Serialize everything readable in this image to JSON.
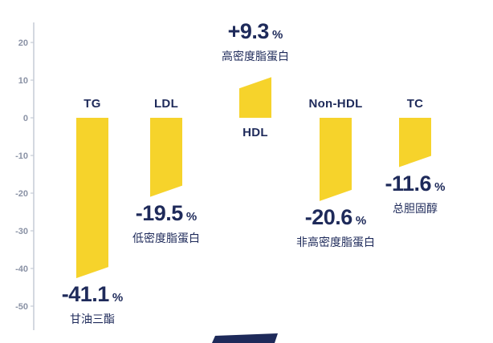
{
  "chart_data": {
    "type": "bar",
    "categories": [
      "TG",
      "LDL",
      "HDL",
      "Non-HDL",
      "TC"
    ],
    "values": [
      -41.1,
      -19.5,
      9.3,
      -20.6,
      -11.6
    ],
    "value_labels": [
      "-41.1",
      "-19.5",
      "+9.3",
      "-20.6",
      "-11.6"
    ],
    "percent_sign": "%",
    "sub_labels": [
      "甘油三酯",
      "低密度脂蛋白",
      "高密度脂蛋白",
      "非高密度脂蛋白",
      "总胆固醇"
    ],
    "y_ticks": [
      20,
      10,
      0,
      -10,
      -20,
      -30,
      -40,
      -50
    ],
    "ylim": [
      -55,
      25
    ],
    "title": "",
    "xlabel": "",
    "ylabel": "",
    "grid": false,
    "legend": false,
    "colors": {
      "bar": "#F6D32B",
      "label": "#1E2A5A",
      "axis": "#C5CBD6",
      "tick_text": "#8A92A5",
      "footer_shape": "#1E2A5A"
    }
  }
}
